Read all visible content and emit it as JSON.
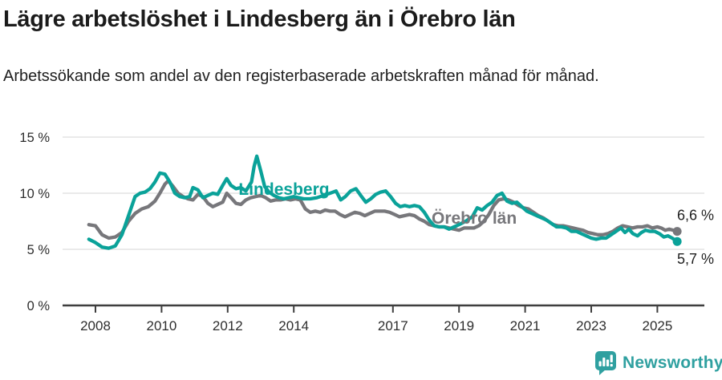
{
  "header": {
    "title": "Lägre arbetslöshet i Lindesberg än i Örebro län",
    "subtitle": "Arbetssökande som andel av den registerbaserade arbetskraften månad för månad."
  },
  "colors": {
    "lindesberg": "#0aa299",
    "orebro": "#77777b",
    "brand": "#2fa0a0",
    "axis": "#3e3e3e",
    "grid": "#e4e4e4",
    "tick_text": "#2e2e2e",
    "value_text": "#1f1f1f"
  },
  "footer": {
    "brand": "Newsworthy"
  },
  "chart_data": {
    "type": "line",
    "title": "Lägre arbetslöshet i Lindesberg än i Örebro län",
    "subtitle": "Arbetssökande som andel av den registerbaserade arbetskraften månad för månad.",
    "unit": "%",
    "x_axis": {
      "ticks": [
        2008,
        2010,
        2012,
        2014,
        2017,
        2019,
        2021,
        2023,
        2025
      ],
      "range": [
        2007.6,
        2026.3
      ]
    },
    "y_axis": {
      "ticks": [
        {
          "value": 0,
          "label": "0 %"
        },
        {
          "value": 5,
          "label": "5 %"
        },
        {
          "value": 10,
          "label": "10 %"
        },
        {
          "value": 15,
          "label": "15 %"
        }
      ],
      "range": [
        0,
        15
      ],
      "grid": true
    },
    "series": [
      {
        "name": "Örebro län",
        "color": "#77777b",
        "end_label": "6,6 %",
        "end_label_side": "above",
        "label_pos": [
          2018.17,
          7.29
        ],
        "points": [
          [
            2007.8,
            7.2
          ],
          [
            2008.0,
            7.1
          ],
          [
            2008.2,
            6.3
          ],
          [
            2008.4,
            6.0
          ],
          [
            2008.6,
            6.1
          ],
          [
            2008.8,
            6.5
          ],
          [
            2009.0,
            7.5
          ],
          [
            2009.2,
            8.2
          ],
          [
            2009.4,
            8.6
          ],
          [
            2009.6,
            8.8
          ],
          [
            2009.8,
            9.3
          ],
          [
            2009.95,
            10.0
          ],
          [
            2010.1,
            10.8
          ],
          [
            2010.2,
            11.1
          ],
          [
            2010.35,
            10.6
          ],
          [
            2010.5,
            10.0
          ],
          [
            2010.65,
            9.7
          ],
          [
            2010.8,
            9.5
          ],
          [
            2010.95,
            9.4
          ],
          [
            2011.1,
            9.9
          ],
          [
            2011.25,
            9.7
          ],
          [
            2011.4,
            9.1
          ],
          [
            2011.55,
            8.8
          ],
          [
            2011.7,
            9.0
          ],
          [
            2011.85,
            9.2
          ],
          [
            2011.97,
            10.0
          ],
          [
            2012.1,
            9.6
          ],
          [
            2012.25,
            9.1
          ],
          [
            2012.4,
            9.0
          ],
          [
            2012.55,
            9.4
          ],
          [
            2012.7,
            9.6
          ],
          [
            2012.85,
            9.7
          ],
          [
            2013.0,
            9.8
          ],
          [
            2013.15,
            9.6
          ],
          [
            2013.3,
            9.3
          ],
          [
            2013.45,
            9.4
          ],
          [
            2013.6,
            9.4
          ],
          [
            2013.75,
            9.5
          ],
          [
            2013.9,
            9.4
          ],
          [
            2014.05,
            9.5
          ],
          [
            2014.2,
            9.4
          ],
          [
            2014.35,
            8.6
          ],
          [
            2014.5,
            8.3
          ],
          [
            2014.65,
            8.4
          ],
          [
            2014.8,
            8.3
          ],
          [
            2014.95,
            8.5
          ],
          [
            2015.1,
            8.4
          ],
          [
            2015.25,
            8.4
          ],
          [
            2015.4,
            8.1
          ],
          [
            2015.55,
            7.9
          ],
          [
            2015.7,
            8.1
          ],
          [
            2015.85,
            8.3
          ],
          [
            2016.0,
            8.2
          ],
          [
            2016.15,
            8.0
          ],
          [
            2016.3,
            8.2
          ],
          [
            2016.45,
            8.4
          ],
          [
            2016.6,
            8.4
          ],
          [
            2016.75,
            8.4
          ],
          [
            2016.9,
            8.3
          ],
          [
            2017.05,
            8.1
          ],
          [
            2017.2,
            7.9
          ],
          [
            2017.35,
            8.0
          ],
          [
            2017.5,
            8.1
          ],
          [
            2017.65,
            8.0
          ],
          [
            2017.8,
            7.7
          ],
          [
            2017.95,
            7.5
          ],
          [
            2018.1,
            7.2
          ],
          [
            2018.25,
            7.1
          ],
          [
            2018.4,
            7.0
          ],
          [
            2018.55,
            7.0
          ],
          [
            2018.7,
            6.9
          ],
          [
            2018.85,
            6.8
          ],
          [
            2019.0,
            6.7
          ],
          [
            2019.15,
            6.9
          ],
          [
            2019.3,
            6.9
          ],
          [
            2019.45,
            6.9
          ],
          [
            2019.6,
            7.1
          ],
          [
            2019.75,
            7.5
          ],
          [
            2019.9,
            8.1
          ],
          [
            2020.05,
            8.9
          ],
          [
            2020.2,
            9.4
          ],
          [
            2020.35,
            9.5
          ],
          [
            2020.5,
            9.4
          ],
          [
            2020.65,
            9.2
          ],
          [
            2020.8,
            8.9
          ],
          [
            2020.95,
            8.7
          ],
          [
            2021.1,
            8.6
          ],
          [
            2021.25,
            8.3
          ],
          [
            2021.4,
            8.0
          ],
          [
            2021.55,
            7.8
          ],
          [
            2021.7,
            7.5
          ],
          [
            2021.85,
            7.2
          ],
          [
            2022.0,
            7.1
          ],
          [
            2022.15,
            7.1
          ],
          [
            2022.3,
            7.0
          ],
          [
            2022.45,
            6.9
          ],
          [
            2022.6,
            6.8
          ],
          [
            2022.75,
            6.7
          ],
          [
            2022.9,
            6.5
          ],
          [
            2023.05,
            6.4
          ],
          [
            2023.2,
            6.3
          ],
          [
            2023.35,
            6.3
          ],
          [
            2023.5,
            6.4
          ],
          [
            2023.65,
            6.6
          ],
          [
            2023.8,
            6.9
          ],
          [
            2023.95,
            7.1
          ],
          [
            2024.1,
            7.0
          ],
          [
            2024.25,
            6.9
          ],
          [
            2024.4,
            7.0
          ],
          [
            2024.55,
            7.0
          ],
          [
            2024.7,
            7.1
          ],
          [
            2024.85,
            6.9
          ],
          [
            2025.0,
            7.0
          ],
          [
            2025.12,
            6.9
          ],
          [
            2025.24,
            6.7
          ],
          [
            2025.36,
            6.8
          ],
          [
            2025.48,
            6.7
          ],
          [
            2025.6,
            6.6
          ]
        ]
      },
      {
        "name": "Lindesberg",
        "color": "#0aa299",
        "end_label": "5,7 %",
        "end_label_side": "below",
        "label_pos": [
          2012.33,
          9.86
        ],
        "points": [
          [
            2007.8,
            5.9
          ],
          [
            2008.0,
            5.6
          ],
          [
            2008.2,
            5.2
          ],
          [
            2008.4,
            5.1
          ],
          [
            2008.6,
            5.3
          ],
          [
            2008.8,
            6.3
          ],
          [
            2009.0,
            8.0
          ],
          [
            2009.2,
            9.7
          ],
          [
            2009.35,
            10.0
          ],
          [
            2009.5,
            10.1
          ],
          [
            2009.65,
            10.4
          ],
          [
            2009.8,
            11.0
          ],
          [
            2009.95,
            11.8
          ],
          [
            2010.1,
            11.7
          ],
          [
            2010.25,
            11.0
          ],
          [
            2010.4,
            10.0
          ],
          [
            2010.55,
            9.7
          ],
          [
            2010.7,
            9.6
          ],
          [
            2010.85,
            9.7
          ],
          [
            2010.95,
            10.5
          ],
          [
            2011.1,
            10.3
          ],
          [
            2011.25,
            9.6
          ],
          [
            2011.4,
            9.8
          ],
          [
            2011.55,
            10.0
          ],
          [
            2011.7,
            9.9
          ],
          [
            2011.85,
            10.7
          ],
          [
            2011.97,
            11.3
          ],
          [
            2012.1,
            10.7
          ],
          [
            2012.25,
            10.4
          ],
          [
            2012.4,
            10.5
          ],
          [
            2012.55,
            10.2
          ],
          [
            2012.72,
            11.0
          ],
          [
            2012.8,
            12.4
          ],
          [
            2012.88,
            13.3
          ],
          [
            2013.0,
            12.0
          ],
          [
            2013.12,
            10.6
          ],
          [
            2013.25,
            10.1
          ],
          [
            2013.4,
            9.8
          ],
          [
            2013.55,
            9.6
          ],
          [
            2013.7,
            9.5
          ],
          [
            2013.85,
            9.6
          ],
          [
            2014.0,
            9.7
          ],
          [
            2014.15,
            9.6
          ],
          [
            2014.3,
            9.5
          ],
          [
            2014.5,
            9.5
          ],
          [
            2014.7,
            9.6
          ],
          [
            2014.9,
            9.8
          ],
          [
            2015.1,
            10.0
          ],
          [
            2015.28,
            10.2
          ],
          [
            2015.42,
            9.4
          ],
          [
            2015.56,
            9.7
          ],
          [
            2015.72,
            10.2
          ],
          [
            2015.88,
            10.4
          ],
          [
            2016.05,
            9.7
          ],
          [
            2016.18,
            9.2
          ],
          [
            2016.33,
            9.5
          ],
          [
            2016.48,
            9.9
          ],
          [
            2016.63,
            10.1
          ],
          [
            2016.78,
            10.2
          ],
          [
            2016.93,
            9.7
          ],
          [
            2017.08,
            9.1
          ],
          [
            2017.22,
            8.8
          ],
          [
            2017.36,
            8.9
          ],
          [
            2017.5,
            8.8
          ],
          [
            2017.65,
            8.9
          ],
          [
            2017.8,
            8.8
          ],
          [
            2017.95,
            8.3
          ],
          [
            2018.1,
            7.6
          ],
          [
            2018.25,
            7.1
          ],
          [
            2018.4,
            7.0
          ],
          [
            2018.55,
            7.0
          ],
          [
            2018.7,
            6.8
          ],
          [
            2018.85,
            7.0
          ],
          [
            2019.0,
            7.2
          ],
          [
            2019.2,
            7.5
          ],
          [
            2019.4,
            7.9
          ],
          [
            2019.55,
            8.7
          ],
          [
            2019.7,
            8.5
          ],
          [
            2019.85,
            8.9
          ],
          [
            2020.0,
            9.2
          ],
          [
            2020.15,
            9.8
          ],
          [
            2020.3,
            10.0
          ],
          [
            2020.45,
            9.3
          ],
          [
            2020.6,
            9.1
          ],
          [
            2020.75,
            9.2
          ],
          [
            2020.9,
            8.8
          ],
          [
            2021.05,
            8.4
          ],
          [
            2021.2,
            8.2
          ],
          [
            2021.35,
            8.0
          ],
          [
            2021.5,
            7.8
          ],
          [
            2021.65,
            7.6
          ],
          [
            2021.8,
            7.3
          ],
          [
            2021.95,
            7.0
          ],
          [
            2022.1,
            7.0
          ],
          [
            2022.25,
            6.9
          ],
          [
            2022.4,
            6.6
          ],
          [
            2022.55,
            6.6
          ],
          [
            2022.7,
            6.4
          ],
          [
            2022.85,
            6.2
          ],
          [
            2023.0,
            6.0
          ],
          [
            2023.15,
            5.9
          ],
          [
            2023.3,
            6.0
          ],
          [
            2023.45,
            6.0
          ],
          [
            2023.6,
            6.3
          ],
          [
            2023.75,
            6.6
          ],
          [
            2023.9,
            6.9
          ],
          [
            2024.02,
            6.5
          ],
          [
            2024.14,
            6.8
          ],
          [
            2024.26,
            6.4
          ],
          [
            2024.4,
            6.2
          ],
          [
            2024.52,
            6.5
          ],
          [
            2024.64,
            6.7
          ],
          [
            2024.78,
            6.6
          ],
          [
            2024.92,
            6.6
          ],
          [
            2025.06,
            6.4
          ],
          [
            2025.2,
            6.1
          ],
          [
            2025.32,
            6.2
          ],
          [
            2025.45,
            6.0
          ],
          [
            2025.6,
            5.7
          ]
        ]
      }
    ],
    "end_dots": true,
    "legend_position": "inline-labels"
  }
}
